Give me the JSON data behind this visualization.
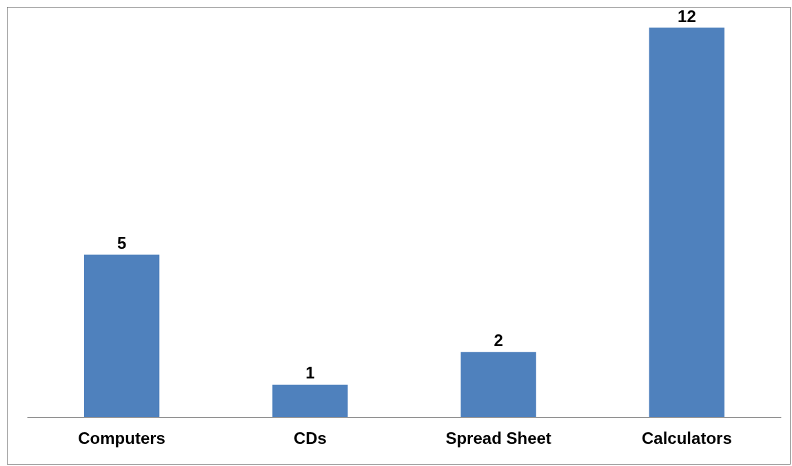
{
  "chart_data": {
    "type": "bar",
    "categories": [
      "Computers",
      "CDs",
      "Spread Sheet",
      "Calculators"
    ],
    "values": [
      5,
      1,
      2,
      12
    ],
    "color": "#4f81bd",
    "data_labels": true
  }
}
